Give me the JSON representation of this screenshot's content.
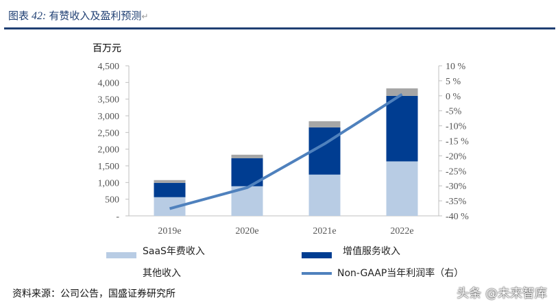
{
  "header": {
    "label": "图表",
    "number": "42:",
    "title": "有赞收入及盈利预测"
  },
  "unit": "百万元",
  "legend": [
    "SaaS年费收入",
    "增值服务收入",
    "其他收入",
    "Non-GAAP当年利润率（右）"
  ],
  "source": "资料来源：公司公告，国盛证券研究所",
  "watermark": "头条 @未来智库",
  "chart_data": {
    "type": "bar",
    "stacked": true,
    "categories": [
      "2019e",
      "2020e",
      "2021e",
      "2022e"
    ],
    "series": [
      {
        "name": "SaaS年费收入",
        "values": [
          560,
          888,
          1237,
          1634
        ],
        "color": "#b8cce4"
      },
      {
        "name": "增值服务收入",
        "values": [
          430,
          842,
          1416,
          1963
        ],
        "color": "#003d91"
      },
      {
        "name": "其他收入",
        "values": [
          83,
          103,
          185,
          226
        ],
        "color": "#a6a6a6"
      },
      {
        "name": "Non-GAAP当年利润率（右）",
        "type": "line",
        "axis": "right",
        "values": [
          -37.6,
          -30.6,
          -16,
          0.5
        ],
        "color": "#4f81bd"
      }
    ],
    "ylim": [
      0,
      4500
    ],
    "yticks": [
      "-",
      "500",
      "1,000",
      "1,500",
      "2,000",
      "2,500",
      "3,000",
      "3,500",
      "4,000",
      "4,500"
    ],
    "y2lim": [
      -40,
      10
    ],
    "y2ticks": [
      "-40 %",
      "-35%",
      "-30%",
      "-25%",
      "-20%",
      "-15 %",
      "-10%",
      "-5%",
      "0 %",
      "5 %",
      "10 %"
    ],
    "grid": false,
    "legend_position": "bottom"
  }
}
